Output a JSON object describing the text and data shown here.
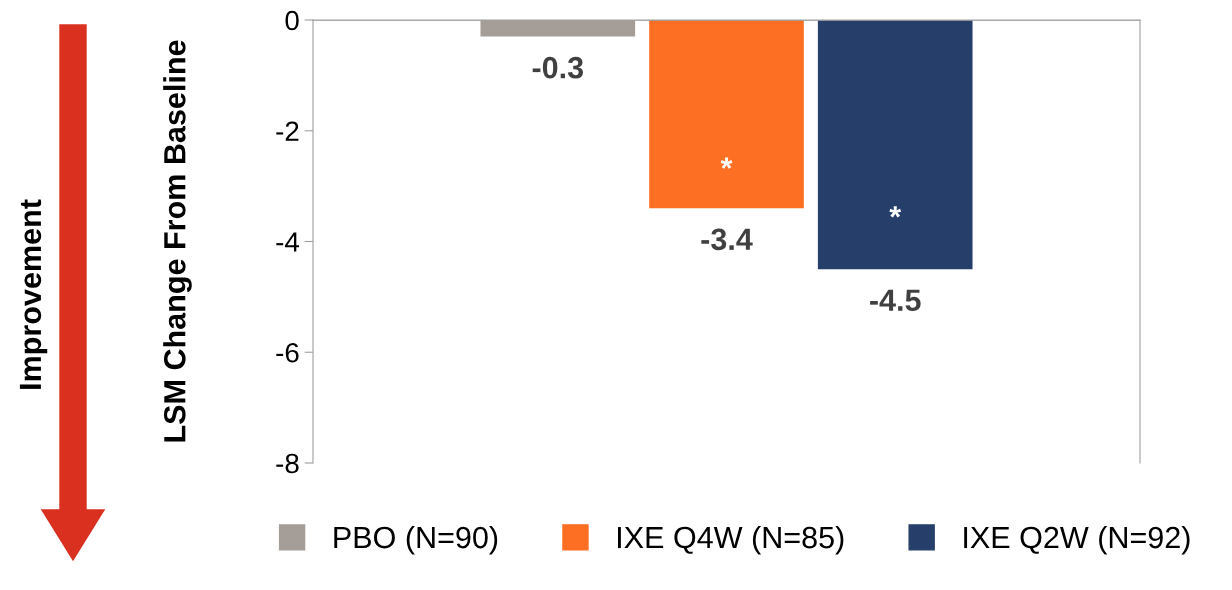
{
  "chart_data": {
    "type": "bar",
    "ylabel": "LSM Change From Baseline",
    "categories": [
      null
    ],
    "series": [
      {
        "name": "PBO (N=90)",
        "color": "#a59e98",
        "values": [
          -0.3
        ]
      },
      {
        "name": "IXE Q4W (N=85)",
        "color": "#fd6f22",
        "values": [
          -3.4
        ]
      },
      {
        "name": "IXE Q2W (N=92)",
        "color": "#263f6a",
        "values": [
          -4.5
        ]
      }
    ],
    "ylim": [
      -8,
      0
    ],
    "yticks": [
      0,
      -2,
      -4,
      -6,
      -8
    ],
    "data_labels": true,
    "legend": "bottom",
    "grid": false,
    "annotations": [
      "Improvement",
      "*",
      "*"
    ]
  }
}
